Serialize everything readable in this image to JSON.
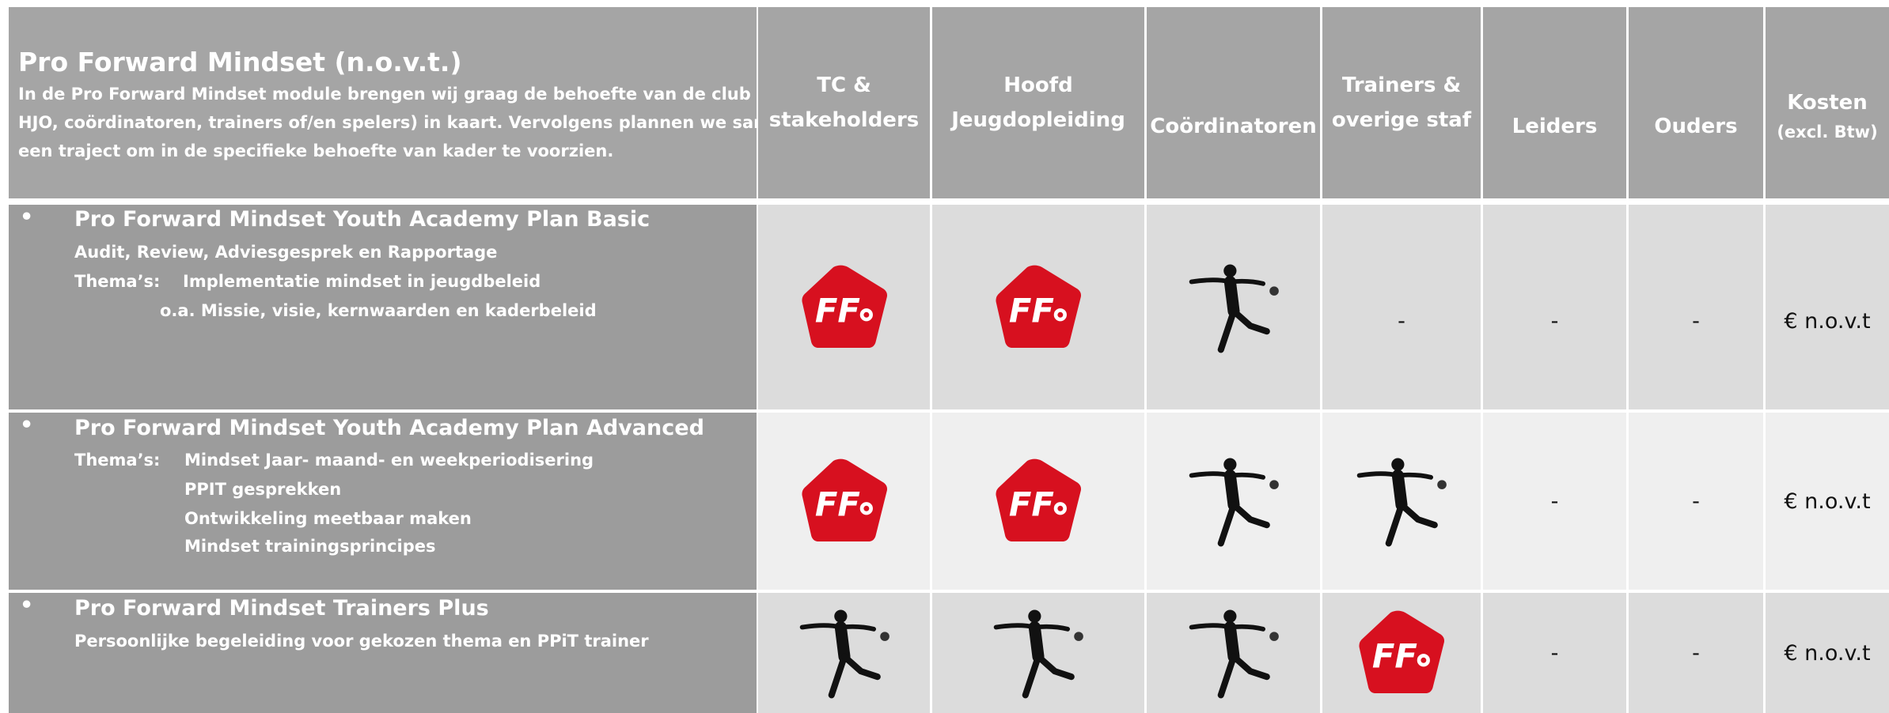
{
  "header": {
    "title": "Pro Forward Mindset (n.o.v.t.)",
    "description": [
      "In de Pro Forward Mindset module brengen wij graag de behoefte van de club (TC,",
      "HJO, coördinatoren, trainers of/en spelers) in kaart. Vervolgens plannen we samen",
      "een traject om in de specifieke behoefte van kader te voorzien."
    ]
  },
  "columns": [
    [
      "TC &",
      "stakeholders"
    ],
    [
      "Hoofd",
      "Jeugdopleiding"
    ],
    [
      "Coördinatoren"
    ],
    [
      "Trainers &",
      "overige staf"
    ],
    [
      "Leiders"
    ],
    [
      "Ouders"
    ],
    [
      "Kosten",
      "(excl. Btw)"
    ]
  ],
  "rows": [
    {
      "title": "Pro Forward Mindset Youth Academy Plan Basic",
      "details": [
        "Audit, Review, Adviesgesprek en Rapportage"
      ],
      "themes_label": "Thema’s:",
      "themes": [
        "Implementatie mindset in jeugdbeleid",
        "o.a. Missie, visie, kernwaarden en kaderbeleid"
      ],
      "text_cells": [
        "-",
        "-",
        "-",
        "€ n.o.v.t"
      ]
    },
    {
      "title": "Pro Forward Mindset Youth Academy Plan Advanced",
      "themes_label": "Thema’s:",
      "themes": [
        "Mindset Jaar- maand- en weekperiodisering",
        "PPIT gesprekken",
        "Ontwikkeling meetbaar maken",
        "Mindset trainingsprincipes"
      ],
      "text_cells": [
        "-",
        "-",
        "€ n.o.v.t"
      ]
    },
    {
      "title": "Pro Forward Mindset Trainers Plus",
      "details": [
        "Persoonlijke begeleiding voor gekozen thema en PPiT trainer"
      ],
      "text_cells": [
        "-",
        "-",
        "€ n.o.v.t"
      ]
    }
  ]
}
